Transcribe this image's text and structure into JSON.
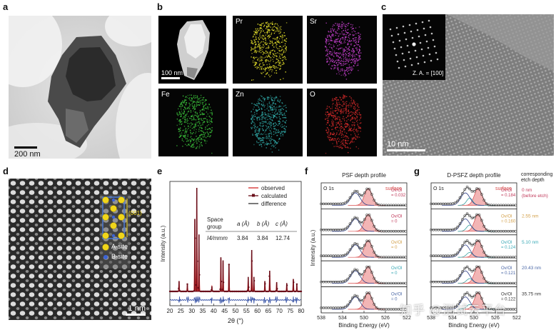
{
  "panels": {
    "a": {
      "label": "a",
      "scale": "200 nm"
    },
    "b": {
      "label": "b",
      "scale": "100 nm",
      "maps": [
        {
          "element": "Pr",
          "color": "#e7e22a"
        },
        {
          "element": "Sr",
          "color": "#c83fd0"
        },
        {
          "element": "Fe",
          "color": "#3bc23b"
        },
        {
          "element": "Zn",
          "color": "#30a8a6"
        },
        {
          "element": "O",
          "color": "#d62a2a"
        }
      ]
    },
    "c": {
      "label": "c",
      "scale": "10 nm",
      "inset": "Z. A. = [100]"
    },
    "d": {
      "label": "d",
      "scale": "1 nm",
      "annot": "(001)",
      "legend": [
        "A-site",
        "B-site"
      ]
    },
    "e": {
      "label": "e"
    },
    "f": {
      "label": "f"
    },
    "g": {
      "label": "g"
    }
  },
  "chart_data": [
    {
      "type": "line",
      "panel": "e",
      "xlabel": "2θ (°)",
      "ylabel": "Intensity (a.u.)",
      "xlim": [
        20,
        80
      ],
      "xticks": [
        20,
        25,
        30,
        35,
        40,
        45,
        50,
        55,
        60,
        65,
        70,
        75,
        80
      ],
      "legend": [
        "observed",
        "calculated",
        "difference"
      ],
      "table": {
        "headers": [
          "Space group",
          "a (Å)",
          "b (Å)",
          "c (Å)"
        ],
        "row": [
          "I4/mmm",
          "3.84",
          "3.84",
          "12.74"
        ]
      },
      "peaks": [
        {
          "x": 24.2,
          "h": 0.1
        },
        {
          "x": 28.0,
          "h": 0.07
        },
        {
          "x": 31.4,
          "h": 0.7
        },
        {
          "x": 32.3,
          "h": 1.0
        },
        {
          "x": 33.3,
          "h": 0.55
        },
        {
          "x": 39.2,
          "h": 0.05
        },
        {
          "x": 43.3,
          "h": 0.33
        },
        {
          "x": 44.3,
          "h": 0.3
        },
        {
          "x": 47.0,
          "h": 0.26
        },
        {
          "x": 55.8,
          "h": 0.14
        },
        {
          "x": 57.4,
          "h": 0.4
        },
        {
          "x": 58.4,
          "h": 0.14
        },
        {
          "x": 63.4,
          "h": 0.1
        },
        {
          "x": 65.6,
          "h": 0.2
        },
        {
          "x": 68.8,
          "h": 0.09
        },
        {
          "x": 73.4,
          "h": 0.08
        },
        {
          "x": 76.4,
          "h": 0.12
        },
        {
          "x": 78.0,
          "h": 0.07
        }
      ]
    },
    {
      "type": "line",
      "panel": "f",
      "title": "PSF depth profile",
      "corner": "O 1s",
      "surface_label": "surface",
      "xlabel": "Binding Energy (eV)",
      "ylabel": "Intensity (a.u.)",
      "xlim": [
        538,
        522
      ],
      "xticks": [
        538,
        534,
        530,
        526,
        522
      ],
      "ratio_label": "Ov/Ol",
      "layers": [
        {
          "ratio": "= 0.032",
          "color": "#c0395a"
        },
        {
          "ratio": "= 0",
          "color": "#c0395a"
        },
        {
          "ratio": "= 0",
          "color": "#d3a04a"
        },
        {
          "ratio": "= 0",
          "color": "#3aa9b6"
        },
        {
          "ratio": "= 0",
          "color": "#4a67a6"
        }
      ]
    },
    {
      "type": "line",
      "panel": "g",
      "title": "D-PSFZ depth profile",
      "corner": "O 1s",
      "surface_label": "surface",
      "xlabel": "Binding Energy (eV)",
      "xlim": [
        538,
        522
      ],
      "xticks": [
        538,
        534,
        530,
        526,
        522
      ],
      "ratio_label": "Ov/Ol",
      "etch_title": [
        "corresponding",
        "etch depth"
      ],
      "layers": [
        {
          "ratio": "= 0.184",
          "depth": [
            "0 nm",
            "(before etch)"
          ],
          "color": "#c0395a"
        },
        {
          "ratio": "= 0.160",
          "depth": [
            "2.55 nm"
          ],
          "color": "#d3a04a"
        },
        {
          "ratio": "= 0.124",
          "depth": [
            "5.10 nm"
          ],
          "color": "#3aa9b6"
        },
        {
          "ratio": "= 0.121",
          "depth": [
            "20.43 nm"
          ],
          "color": "#4a67a6"
        },
        {
          "ratio": "= 0.122",
          "depth": [
            "35.75 nm"
          ],
          "color": "#333333"
        }
      ]
    }
  ],
  "watermark": "知乎 @测试云平台"
}
